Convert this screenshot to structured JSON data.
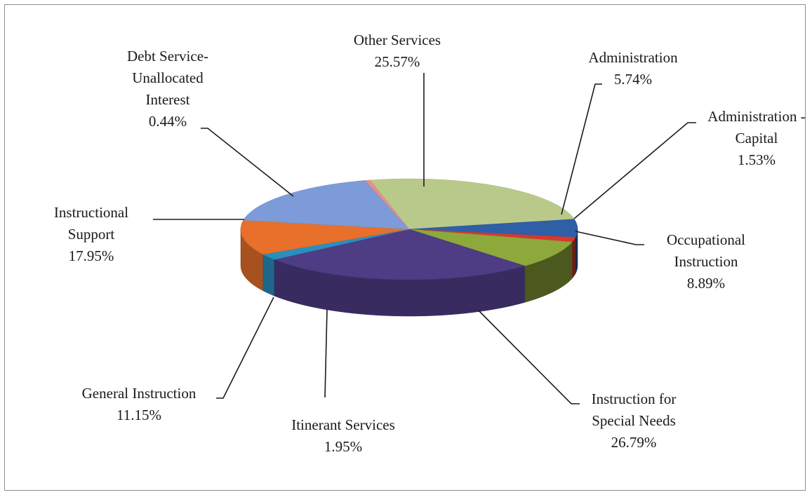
{
  "chart_data": {
    "type": "pie",
    "title": "",
    "three_d": true,
    "legend": "none",
    "slices": [
      {
        "label": [
          "Other Services"
        ],
        "value": 25.57,
        "value_label": "25.57%",
        "color": "#b9c98a"
      },
      {
        "label": [
          "Administration"
        ],
        "value": 5.74,
        "value_label": "5.74%",
        "color": "#2f5fa6"
      },
      {
        "label": [
          "Administration -",
          "Capital"
        ],
        "value": 1.53,
        "value_label": "1.53%",
        "color": "#d9382e"
      },
      {
        "label": [
          "Occupational",
          "Instruction"
        ],
        "value": 8.89,
        "value_label": "8.89%",
        "color": "#8da83b"
      },
      {
        "label": [
          "Instruction for",
          "Special Needs"
        ],
        "value": 26.79,
        "value_label": "26.79%",
        "color": "#4e3c85"
      },
      {
        "label": [
          "Itinerant Services"
        ],
        "value": 1.95,
        "value_label": "1.95%",
        "color": "#2a8fbf"
      },
      {
        "label": [
          "General  Instruction"
        ],
        "value": 11.15,
        "value_label": "11.15%",
        "color": "#e8702a"
      },
      {
        "label": [
          "Instructional",
          "Support"
        ],
        "value": 17.95,
        "value_label": "17.95%",
        "color": "#7d9bd8"
      },
      {
        "label": [
          "Debt Service-",
          "Unallocated",
          "Interest"
        ],
        "value": 0.44,
        "value_label": "0.44%",
        "color": "#e8908a"
      }
    ]
  }
}
